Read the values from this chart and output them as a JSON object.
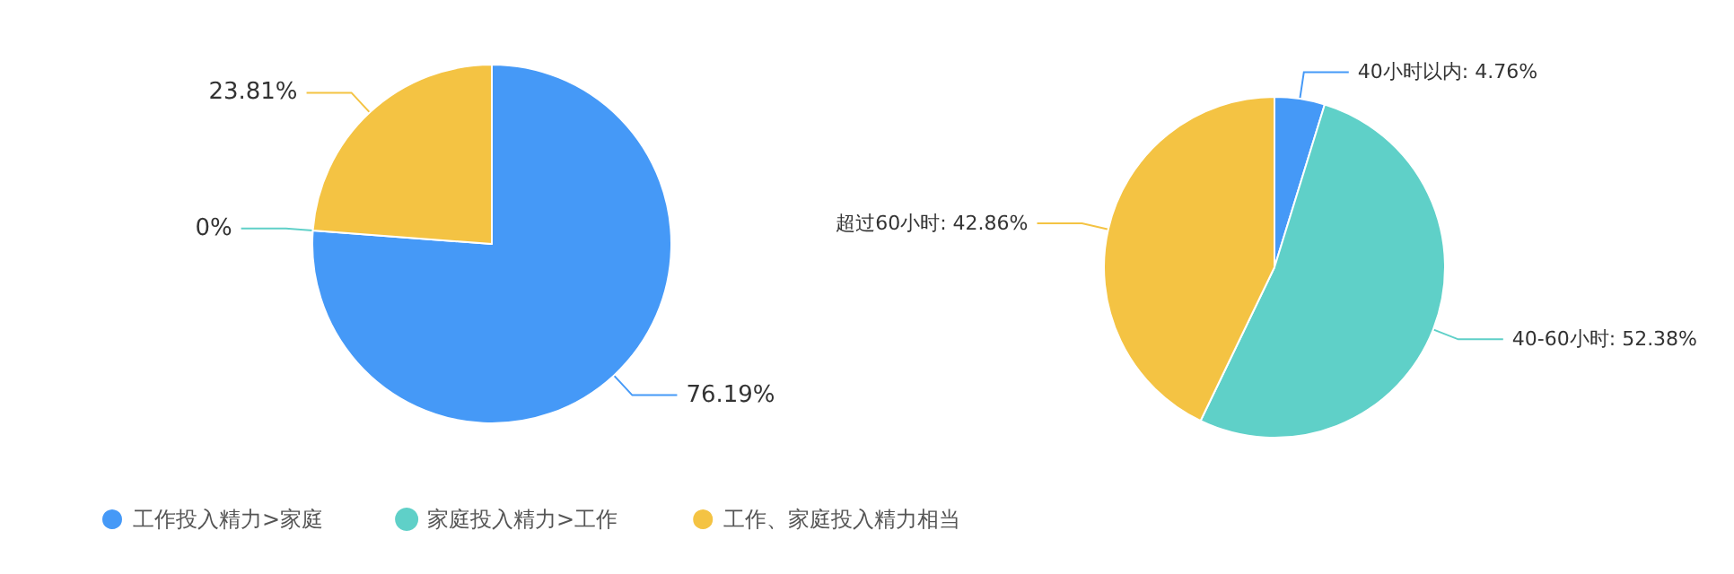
{
  "chart_data": [
    {
      "type": "pie",
      "categories": [
        "工作投入精力>家庭",
        "家庭投入精力>工作",
        "工作、家庭投入精力相当"
      ],
      "values": [
        76.19,
        0,
        23.81
      ],
      "colors": [
        "#4599f7",
        "#5fd0c8",
        "#f4c343"
      ],
      "value_labels": [
        "76.19%",
        "0%",
        "23.81%"
      ],
      "legend": "bottom"
    },
    {
      "type": "pie",
      "categories": [
        "40小时以内",
        "40-60小时",
        "超过60小时"
      ],
      "values": [
        4.76,
        52.38,
        42.86
      ],
      "colors": [
        "#4599f7",
        "#5fd0c8",
        "#f4c343"
      ],
      "value_labels": [
        "4.76%",
        "52.38%",
        "42.86%"
      ]
    }
  ]
}
